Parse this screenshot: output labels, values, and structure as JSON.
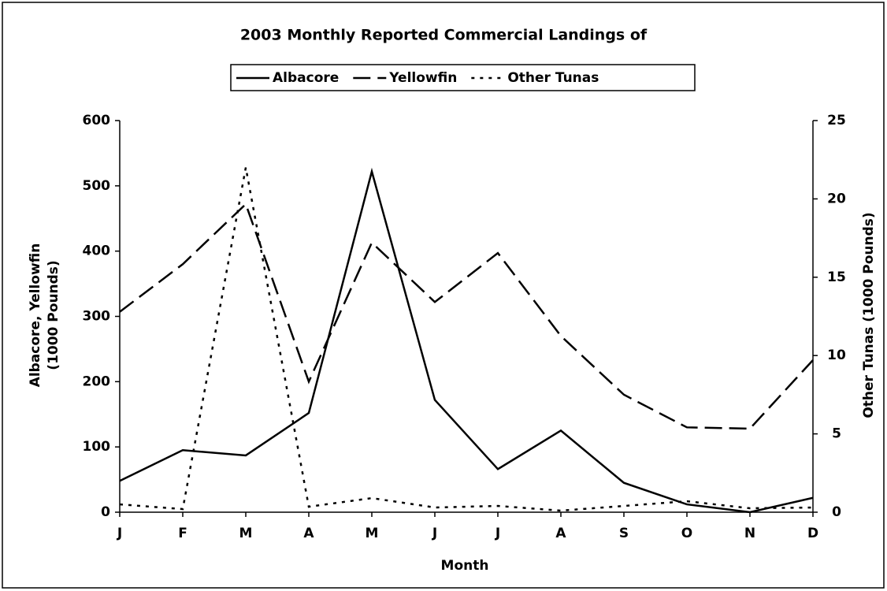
{
  "chart_data": {
    "type": "line",
    "title": "2003 Monthly Reported Commercial Landings of",
    "xlabel": "Month",
    "ylabel": [
      "Albacore, Yellowfin",
      "(1000 Pounds)"
    ],
    "y2label": "Other Tunas (1000 Pounds)",
    "categories": [
      "J",
      "F",
      "M",
      "A",
      "M",
      "J",
      "J",
      "A",
      "S",
      "O",
      "N",
      "D"
    ],
    "series": [
      {
        "name": "Albacore",
        "color": "#000000",
        "dash": "solid",
        "values": [
          48,
          95,
          87,
          152,
          522,
          172,
          66,
          125,
          45,
          12,
          0,
          22
        ]
      },
      {
        "name": "Yellowfin",
        "color": "#000000",
        "dash": "dashed",
        "values": [
          307,
          380,
          472,
          200,
          413,
          322,
          397,
          270,
          180,
          130,
          128,
          233
        ]
      },
      {
        "name": "Other Tunas",
        "color": "#000000",
        "dash": "dotted",
        "axis": "y2",
        "values": [
          0.5,
          0.2,
          22,
          0.35,
          0.9,
          0.3,
          0.4,
          0.1,
          0.4,
          0.7,
          0.25,
          0.3
        ]
      }
    ],
    "ylim": [
      0,
      600
    ],
    "yticks": [
      0,
      100,
      200,
      300,
      400,
      500,
      600
    ],
    "y2lim": [
      0,
      25
    ],
    "y2ticks": [
      0,
      5,
      10,
      15,
      20,
      25
    ],
    "grid": false,
    "legend": "top"
  }
}
